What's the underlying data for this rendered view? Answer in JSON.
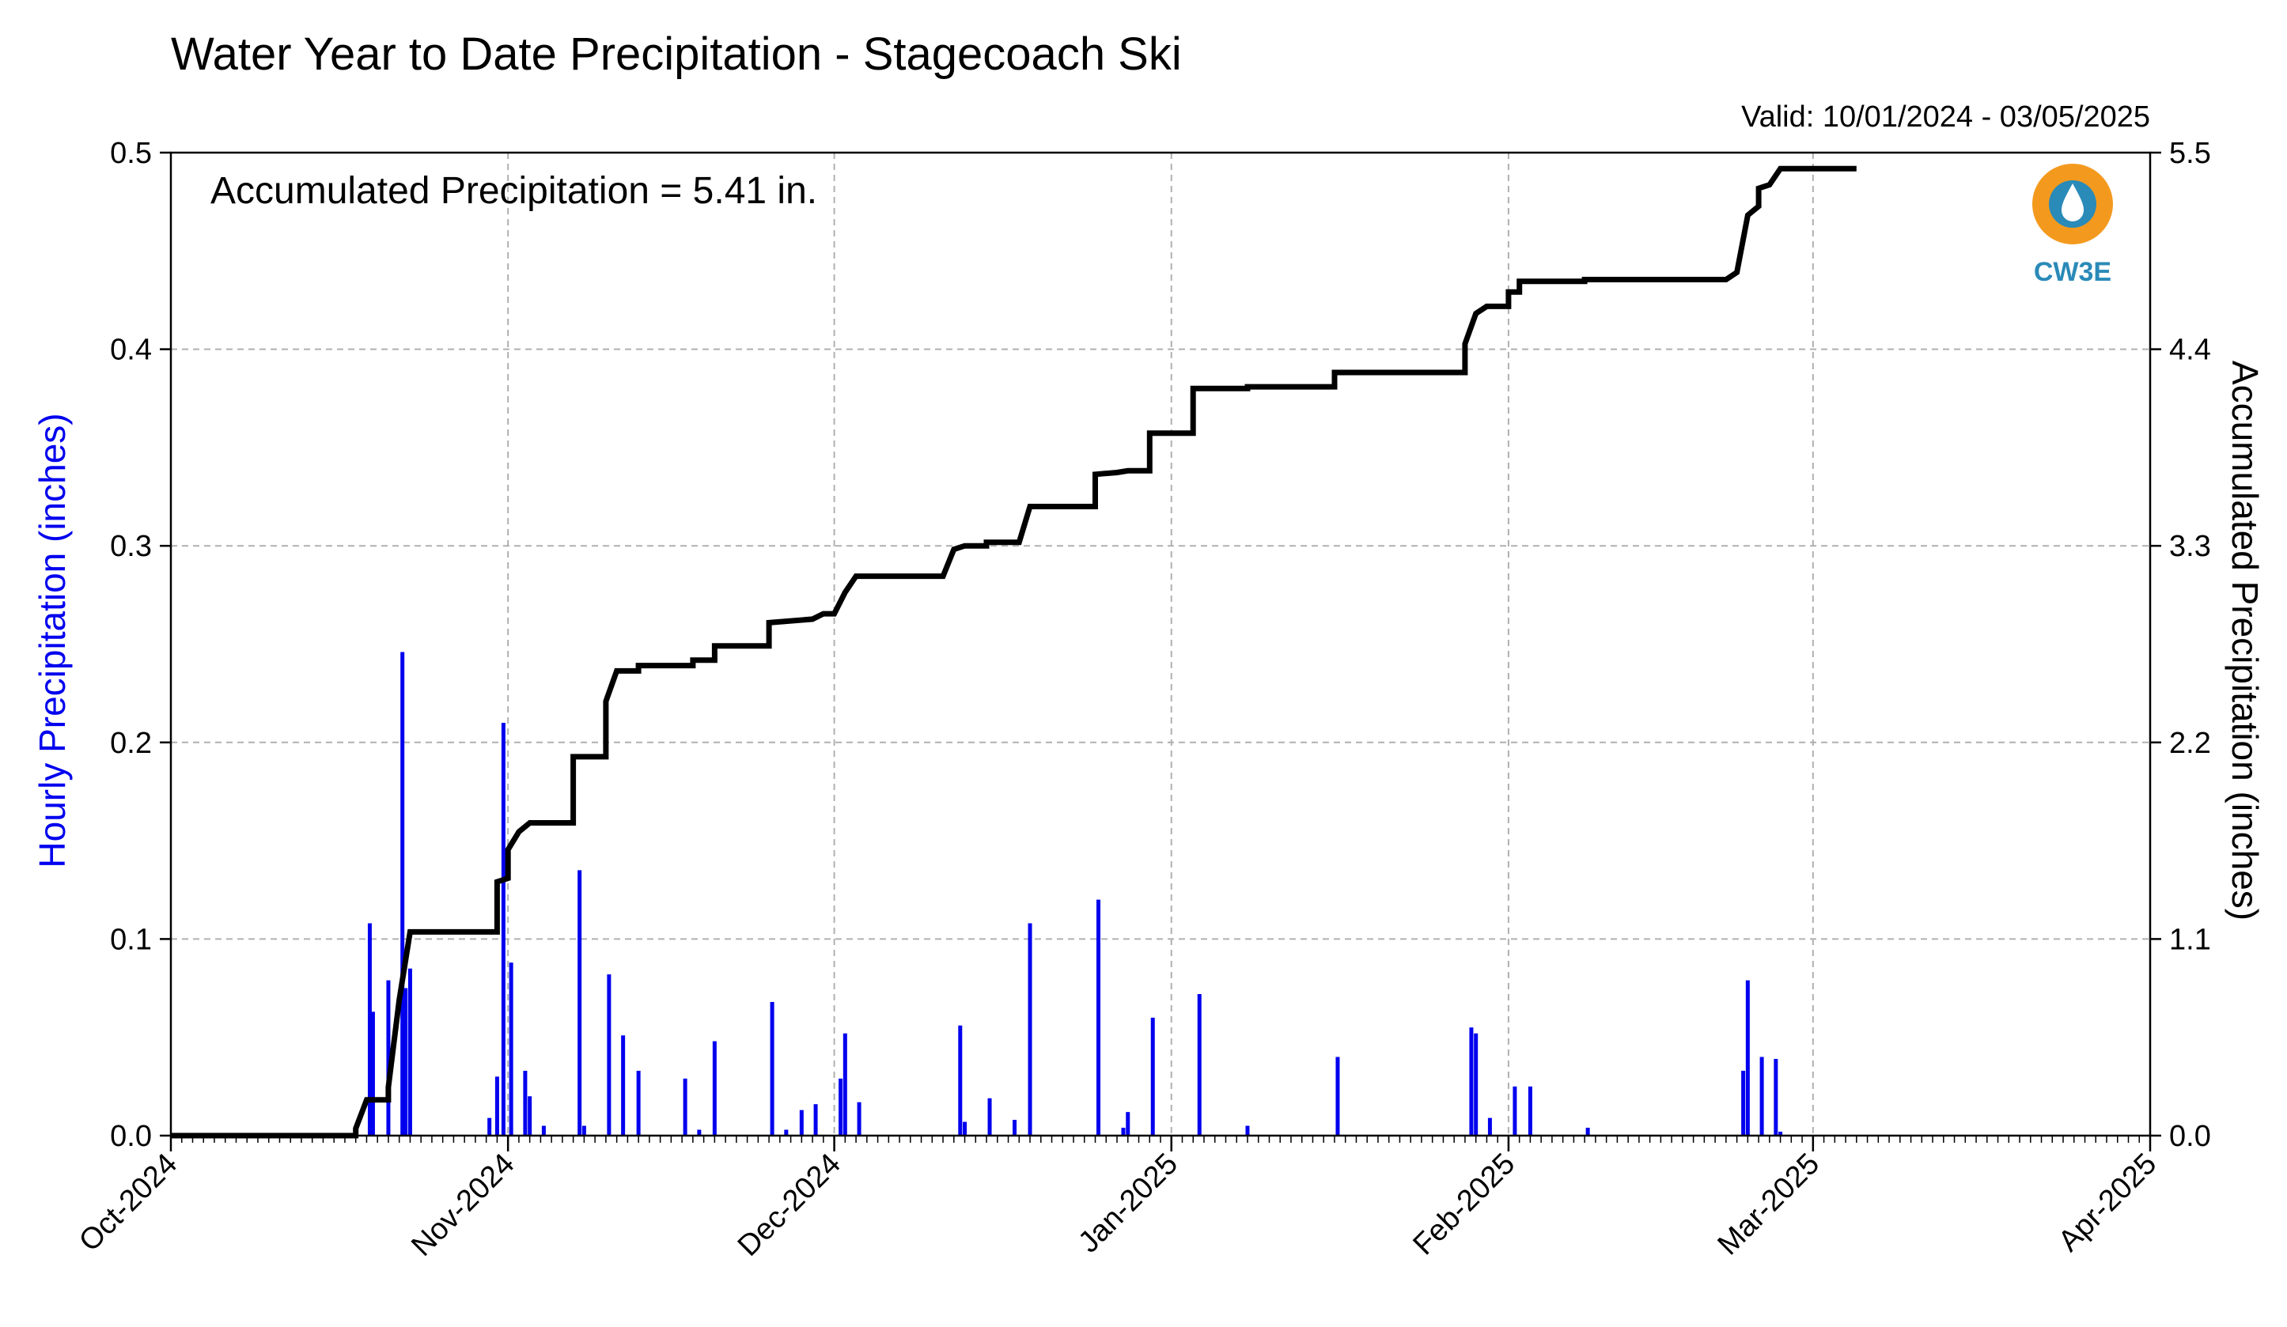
{
  "chart_data": {
    "type": "bar+line",
    "title": "Water Year to Date Precipitation - Stagecoach Ski",
    "valid_text": "Valid: 10/01/2024 - 03/05/2025",
    "annotation": "Accumulated Precipitation = 5.41 in.",
    "logo_text": "CW3E",
    "ylabel_left": "Hourly Precipitation (inches)",
    "ylabel_right": "Accumulated Precipitation (inches)",
    "ylim_left": [
      0,
      0.5
    ],
    "ylim_right": [
      0,
      5.5
    ],
    "yticks_left": [
      "0.0",
      "0.1",
      "0.2",
      "0.3",
      "0.4",
      "0.5"
    ],
    "yticks_right": [
      "0.0",
      "1.1",
      "2.2",
      "3.3",
      "4.4",
      "5.5"
    ],
    "x_start": "2024-10-01",
    "x_end": "2025-04-01",
    "xtick_labels": [
      "Oct-2024",
      "Nov-2024",
      "Dec-2024",
      "Jan-2025",
      "Feb-2025",
      "Mar-2025",
      "Apr-2025"
    ],
    "grid": true,
    "colors": {
      "hourly": "#0000ee",
      "accumulated": "#000000",
      "grid": "#b0b0b0",
      "logo_orange": "#f39a1e",
      "logo_blue": "#2a8ab8"
    },
    "series": [
      {
        "name": "Hourly Precipitation",
        "type": "bar",
        "points": [
          [
            "2024-10-18",
            0.005
          ],
          [
            "2024-10-19",
            0.108
          ],
          [
            "2024-10-19",
            0.063
          ],
          [
            "2024-10-21",
            0.079
          ],
          [
            "2024-10-22",
            0.246
          ],
          [
            "2024-10-22",
            0.075
          ],
          [
            "2024-10-23",
            0.085
          ],
          [
            "2024-10-30",
            0.009
          ],
          [
            "2024-10-31",
            0.21
          ],
          [
            "2024-10-31",
            0.03
          ],
          [
            "2024-11-01",
            0.088
          ],
          [
            "2024-11-02",
            0.033
          ],
          [
            "2024-11-03",
            0.02
          ],
          [
            "2024-11-04",
            0.005
          ],
          [
            "2024-11-07",
            0.135
          ],
          [
            "2024-11-08",
            0.005
          ],
          [
            "2024-11-10",
            0.082
          ],
          [
            "2024-11-11",
            0.051
          ],
          [
            "2024-11-13",
            0.033
          ],
          [
            "2024-11-17",
            0.029
          ],
          [
            "2024-11-18",
            0.003
          ],
          [
            "2024-11-20",
            0.048
          ],
          [
            "2024-11-25",
            0.068
          ],
          [
            "2024-11-26",
            0.003
          ],
          [
            "2024-11-28",
            0.013
          ],
          [
            "2024-11-29",
            0.016
          ],
          [
            "2024-12-01",
            0.029
          ],
          [
            "2024-12-02",
            0.052
          ],
          [
            "2024-12-03",
            0.017
          ],
          [
            "2024-12-12",
            0.056
          ],
          [
            "2024-12-13",
            0.007
          ],
          [
            "2024-12-15",
            0.019
          ],
          [
            "2024-12-17",
            0.008
          ],
          [
            "2024-12-19",
            0.108
          ],
          [
            "2024-12-25",
            0.12
          ],
          [
            "2024-12-27",
            0.004
          ],
          [
            "2024-12-28",
            0.012
          ],
          [
            "2024-12-30",
            0.06
          ],
          [
            "2025-01-03",
            0.072
          ],
          [
            "2025-01-08",
            0.005
          ],
          [
            "2025-01-16",
            0.04
          ],
          [
            "2025-01-28",
            0.055
          ],
          [
            "2025-01-29",
            0.052
          ],
          [
            "2025-01-30",
            0.009
          ],
          [
            "2025-02-01",
            0.025
          ],
          [
            "2025-02-03",
            0.025
          ],
          [
            "2025-02-08",
            0.004
          ],
          [
            "2025-02-22",
            0.033
          ],
          [
            "2025-02-23",
            0.079
          ],
          [
            "2025-02-24",
            0.04
          ],
          [
            "2025-02-25",
            0.039
          ],
          [
            "2025-02-26",
            0.002
          ]
        ]
      },
      {
        "name": "Accumulated Precipitation",
        "type": "step-line",
        "points": [
          [
            "2024-10-01",
            0
          ],
          [
            "2024-10-18",
            0
          ],
          [
            "2024-10-18",
            0.04
          ],
          [
            "2024-10-19",
            0.2
          ],
          [
            "2024-10-21",
            0.2
          ],
          [
            "2024-10-21",
            0.27
          ],
          [
            "2024-10-22",
            0.76
          ],
          [
            "2024-10-23",
            1.14
          ],
          [
            "2024-10-31",
            1.14
          ],
          [
            "2024-10-31",
            1.42
          ],
          [
            "2024-11-01",
            1.44
          ],
          [
            "2024-11-01",
            1.6
          ],
          [
            "2024-11-02",
            1.7
          ],
          [
            "2024-11-03",
            1.75
          ],
          [
            "2024-11-07",
            1.75
          ],
          [
            "2024-11-07",
            2.12
          ],
          [
            "2024-11-10",
            2.12
          ],
          [
            "2024-11-10",
            2.43
          ],
          [
            "2024-11-11",
            2.6
          ],
          [
            "2024-11-13",
            2.6
          ],
          [
            "2024-11-13",
            2.63
          ],
          [
            "2024-11-18",
            2.63
          ],
          [
            "2024-11-18",
            2.66
          ],
          [
            "2024-11-20",
            2.66
          ],
          [
            "2024-11-20",
            2.74
          ],
          [
            "2024-11-25",
            2.74
          ],
          [
            "2024-11-25",
            2.87
          ],
          [
            "2024-11-29",
            2.89
          ],
          [
            "2024-11-30",
            2.92
          ],
          [
            "2024-12-01",
            2.92
          ],
          [
            "2024-12-02",
            3.04
          ],
          [
            "2024-12-03",
            3.13
          ],
          [
            "2024-12-11",
            3.13
          ],
          [
            "2024-12-12",
            3.28
          ],
          [
            "2024-12-13",
            3.3
          ],
          [
            "2024-12-15",
            3.3
          ],
          [
            "2024-12-15",
            3.32
          ],
          [
            "2024-12-18",
            3.32
          ],
          [
            "2024-12-19",
            3.52
          ],
          [
            "2024-12-25",
            3.52
          ],
          [
            "2024-12-25",
            3.7
          ],
          [
            "2024-12-27",
            3.71
          ],
          [
            "2024-12-28",
            3.72
          ],
          [
            "2024-12-30",
            3.72
          ],
          [
            "2024-12-30",
            3.93
          ],
          [
            "2025-01-03",
            3.93
          ],
          [
            "2025-01-03",
            4.18
          ],
          [
            "2025-01-08",
            4.18
          ],
          [
            "2025-01-08",
            4.19
          ],
          [
            "2025-01-16",
            4.19
          ],
          [
            "2025-01-16",
            4.27
          ],
          [
            "2025-01-28",
            4.27
          ],
          [
            "2025-01-28",
            4.43
          ],
          [
            "2025-01-29",
            4.6
          ],
          [
            "2025-01-30",
            4.64
          ],
          [
            "2025-02-01",
            4.64
          ],
          [
            "2025-02-01",
            4.72
          ],
          [
            "2025-02-02",
            4.72
          ],
          [
            "2025-02-02",
            4.78
          ],
          [
            "2025-02-08",
            4.78
          ],
          [
            "2025-02-08",
            4.79
          ],
          [
            "2025-02-21",
            4.79
          ],
          [
            "2025-02-22",
            4.83
          ],
          [
            "2025-02-23",
            5.15
          ],
          [
            "2025-02-24",
            5.2
          ],
          [
            "2025-02-24",
            5.3
          ],
          [
            "2025-02-25",
            5.32
          ],
          [
            "2025-02-26",
            5.41
          ],
          [
            "2025-03-05",
            5.41
          ]
        ]
      }
    ]
  }
}
